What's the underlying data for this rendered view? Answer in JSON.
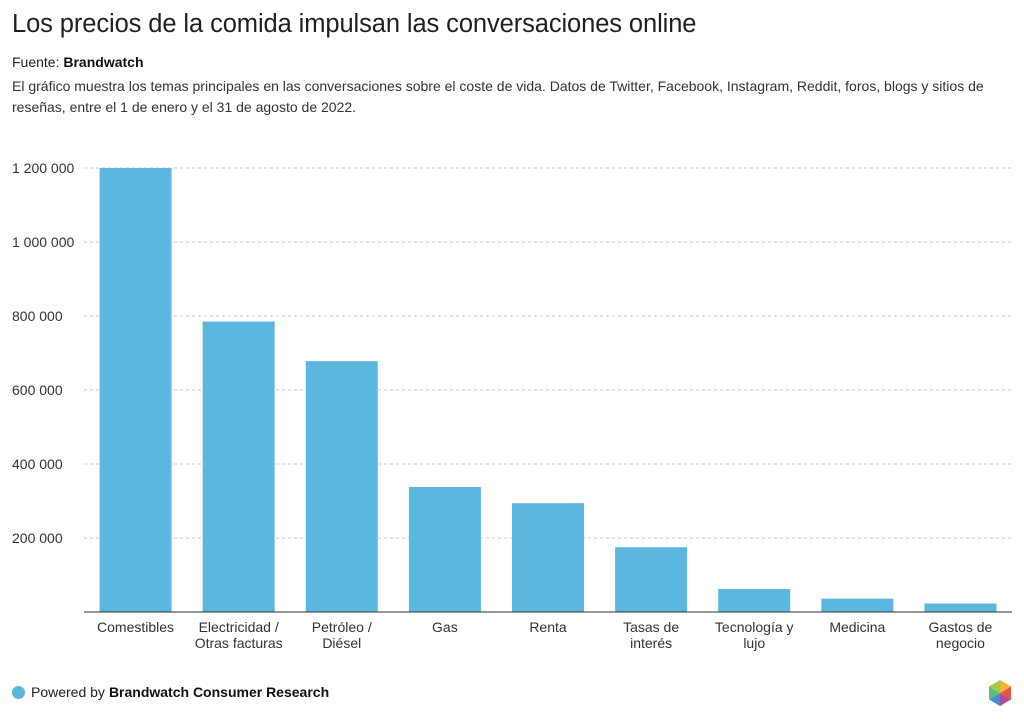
{
  "title": "Los precios de la comida impulsan las conversaciones online",
  "source": {
    "label": "Fuente:",
    "name": "Brandwatch"
  },
  "description": "El gráfico muestra los temas principales en las conversaciones sobre el coste de vida. Datos de Twitter, Facebook, Instagram, Reddit, foros, blogs y sitios de reseñas, entre el 1 de enero y el 31 de agosto de 2022.",
  "footer": {
    "prefix": "Powered by",
    "brand": "Brandwatch Consumer Research",
    "logo_icon": "brandwatch-hexagon-logo"
  },
  "colors": {
    "bar": "#5bb7de",
    "grid": "#c9c9c9",
    "axis": "#333333"
  },
  "chart_data": {
    "type": "bar",
    "categories": [
      [
        "Comestibles"
      ],
      [
        "Electricidad /",
        "Otras facturas"
      ],
      [
        "Petróleo /",
        "Diésel"
      ],
      [
        "Gas"
      ],
      [
        "Renta"
      ],
      [
        "Tasas de",
        "interés"
      ],
      [
        "Tecnología y",
        "lujo"
      ],
      [
        "Medicina"
      ],
      [
        "Gastos de",
        "negocio"
      ]
    ],
    "values": [
      1200000,
      785000,
      678000,
      338000,
      294000,
      175000,
      62000,
      36000,
      23000
    ],
    "yticks": [
      200000,
      400000,
      600000,
      800000,
      1000000,
      1200000
    ],
    "ytick_labels": [
      "200 000",
      "400 000",
      "600 000",
      "800 000",
      "1 000 000",
      "1 200 000"
    ],
    "ylim": [
      0,
      1200000
    ],
    "grid": true,
    "legend": "none",
    "xlabel": "",
    "ylabel": ""
  }
}
